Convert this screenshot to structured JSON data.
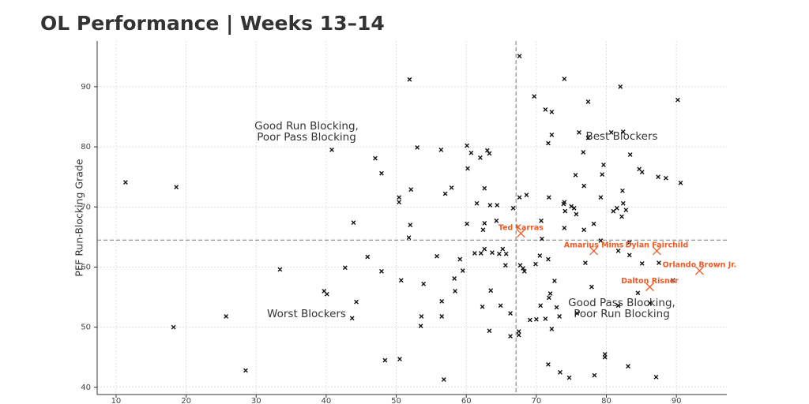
{
  "chart_data": {
    "type": "scatter",
    "title": "OL Performance | Weeks 13–14",
    "ylabel": "PFF Run-Blocking Grade",
    "xlim": [
      7.3,
      97.2
    ],
    "ylim": [
      38.8,
      97.6
    ],
    "xticks": [
      10,
      20,
      30,
      40,
      50,
      60,
      70,
      80,
      90
    ],
    "yticks": [
      40,
      50,
      60,
      70,
      80,
      90
    ],
    "grid": true,
    "color": "#111111",
    "x": [
      11.35,
      18.6,
      18.2,
      25.7,
      28.5,
      33.4,
      40.8,
      39.7,
      40.1,
      42.7,
      43.9,
      44.3,
      43.7,
      45.9,
      47.0,
      47.9,
      47.9,
      48.4,
      50.5,
      51.9,
      50.4,
      50.4,
      52.1,
      52.0,
      51.8,
      50.7,
      53.0,
      53.9,
      53.6,
      53.5,
      56.4,
      57.0,
      57.9,
      55.8,
      56.5,
      56.5,
      56.8,
      58.3,
      58.4,
      59.1,
      59.5,
      60.1,
      60.7,
      60.2,
      60.1,
      62.0,
      61.5,
      63.0,
      63.3,
      62.6,
      63.4,
      62.6,
      62.4,
      61.2,
      62.1,
      62.6,
      63.7,
      64.7,
      65.7,
      65.2,
      64.3,
      64.4,
      65.6,
      62.3,
      63.5,
      64.9,
      66.3,
      63.3,
      66.3,
      66.7,
      67.6,
      67.6,
      68.6,
      67.7,
      68.1,
      68.3,
      67.5,
      67.5,
      69.1,
      69.7,
      71.3,
      72.2,
      74.0,
      77.4,
      82.0,
      90.2,
      72.2,
      71.7,
      76.7,
      76.1,
      77.4,
      80.7,
      82.4,
      79.6,
      83.4,
      84.7,
      85.1,
      87.4,
      88.5,
      90.6,
      75.6,
      79.4,
      76.8,
      71.8,
      74.0,
      74.1,
      73.9,
      75.0,
      75.4,
      75.7,
      79.2,
      82.3,
      82.4,
      81.0,
      81.5,
      82.8,
      82.2,
      70.7,
      76.8,
      74.0,
      78.2,
      70.8,
      79.2,
      83.3,
      81.7,
      83.3,
      70.5,
      71.7,
      69.9,
      77.0,
      85.1,
      87.5,
      72.6,
      77.9,
      89.5,
      84.5,
      70.6,
      72.0,
      71.8,
      72.9,
      71.3,
      73.3,
      70.0,
      72.2,
      75.8,
      81.7,
      86.2,
      79.8,
      79.8,
      71.7,
      73.4,
      74.7,
      78.3,
      83.1,
      87.1
    ],
    "y": [
      74.1,
      73.3,
      50.0,
      51.8,
      42.8,
      59.6,
      79.5,
      56.0,
      55.5,
      59.9,
      67.4,
      54.2,
      51.5,
      61.7,
      78.1,
      75.6,
      59.3,
      44.5,
      44.7,
      91.2,
      71.6,
      70.8,
      72.9,
      67.0,
      64.9,
      57.8,
      79.9,
      57.2,
      51.8,
      50.2,
      79.5,
      72.2,
      73.2,
      61.8,
      54.3,
      51.8,
      41.3,
      58.1,
      56.0,
      61.3,
      59.4,
      80.2,
      79.0,
      76.4,
      67.2,
      78.2,
      70.6,
      79.4,
      78.9,
      73.1,
      70.3,
      67.3,
      66.2,
      62.3,
      62.3,
      63.0,
      62.4,
      62.2,
      62.2,
      63.0,
      67.7,
      70.3,
      60.3,
      53.4,
      56.1,
      53.6,
      52.3,
      49.4,
      48.5,
      69.8,
      95.1,
      71.6,
      72.0,
      60.3,
      59.8,
      59.3,
      49.3,
      48.7,
      51.2,
      88.4,
      86.2,
      85.8,
      91.3,
      87.5,
      90.0,
      87.8,
      82.0,
      80.6,
      79.1,
      82.4,
      81.5,
      82.4,
      82.5,
      77.0,
      78.7,
      76.3,
      75.8,
      75.0,
      74.8,
      74.0,
      75.3,
      75.4,
      73.5,
      71.6,
      70.8,
      69.3,
      70.5,
      70.1,
      69.8,
      68.8,
      71.6,
      72.7,
      70.6,
      69.3,
      69.8,
      69.5,
      68.4,
      67.7,
      66.2,
      66.5,
      67.2,
      64.7,
      64.4,
      64.1,
      62.7,
      62.0,
      61.9,
      61.3,
      60.5,
      60.7,
      60.6,
      60.7,
      57.7,
      56.7,
      57.8,
      55.7,
      53.6,
      55.6,
      54.9,
      53.3,
      51.4,
      51.8,
      51.3,
      49.7,
      52.3,
      53.6,
      54.0,
      45.5,
      45.0,
      43.8,
      42.5,
      41.6,
      42.0,
      43.5,
      41.7
    ],
    "highlights": {
      "color": "#f05a24",
      "labels": [
        "Ted Karras",
        "Amarius Mims",
        "Dylan Fairchild",
        "Orlando Brown Jr.",
        "Dalton Risner"
      ],
      "x": [
        67.8,
        78.2,
        87.2,
        93.3,
        86.2
      ],
      "y": [
        65.6,
        62.7,
        62.7,
        59.4,
        56.7
      ]
    },
    "reference_lines": {
      "x": 67.1,
      "y": 64.5
    },
    "quadrant_labels": [
      [
        "Good Run Blocking,",
        "Poor Pass Blocking"
      ],
      [
        "Best Blockers"
      ],
      [
        "Worst Blockers"
      ],
      [
        "Good Pass Blocking,",
        "Poor Run Blocking"
      ]
    ]
  }
}
